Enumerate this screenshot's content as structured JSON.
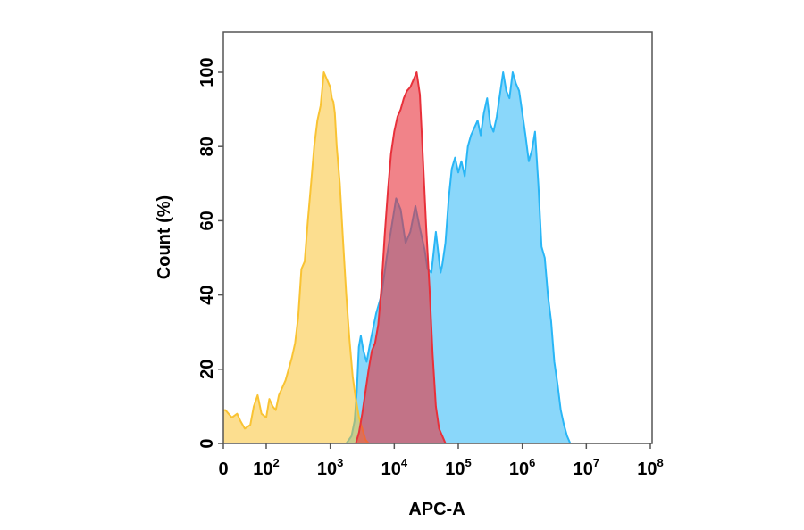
{
  "chart_data": {
    "type": "area",
    "title": "",
    "xlabel": "APC-A",
    "ylabel": "Count (%)",
    "x_scale": "log",
    "xlim": [
      0,
      100000000
    ],
    "ylim": [
      0,
      110
    ],
    "x_ticks": [
      {
        "value": 0,
        "base": "0",
        "exp": ""
      },
      {
        "value": 100,
        "base": "10",
        "exp": "2"
      },
      {
        "value": 1000,
        "base": "10",
        "exp": "3"
      },
      {
        "value": 10000,
        "base": "10",
        "exp": "4"
      },
      {
        "value": 100000,
        "base": "10",
        "exp": "5"
      },
      {
        "value": 1000000,
        "base": "10",
        "exp": "6"
      },
      {
        "value": 10000000,
        "base": "10",
        "exp": "7"
      },
      {
        "value": 100000000,
        "base": "10",
        "exp": "8"
      }
    ],
    "y_ticks": [
      {
        "value": 0,
        "label": "0"
      },
      {
        "value": 20,
        "label": "20"
      },
      {
        "value": 40,
        "label": "40"
      },
      {
        "value": 60,
        "label": "60"
      },
      {
        "value": 80,
        "label": "80"
      },
      {
        "value": 100,
        "label": "100"
      }
    ],
    "grid": false,
    "series": [
      {
        "color": "#29b6f6",
        "fill": "rgba(41,182,246,0.55)",
        "points": [
          [
            1780,
            0
          ],
          [
            2150,
            2
          ],
          [
            2400,
            6
          ],
          [
            2600,
            14
          ],
          [
            2800,
            26
          ],
          [
            3000,
            29
          ],
          [
            3300,
            25
          ],
          [
            3700,
            22
          ],
          [
            4300,
            28
          ],
          [
            5200,
            35
          ],
          [
            6300,
            40
          ],
          [
            7600,
            50
          ],
          [
            9000,
            58
          ],
          [
            10700,
            66
          ],
          [
            12600,
            63
          ],
          [
            15000,
            54
          ],
          [
            17800,
            57
          ],
          [
            21400,
            64
          ],
          [
            25100,
            58
          ],
          [
            30000,
            52
          ],
          [
            33000,
            47
          ],
          [
            38000,
            46
          ],
          [
            44700,
            57
          ],
          [
            53000,
            46
          ],
          [
            56000,
            48
          ],
          [
            63000,
            54
          ],
          [
            71000,
            66
          ],
          [
            79000,
            74
          ],
          [
            89000,
            77
          ],
          [
            100000,
            73
          ],
          [
            112000,
            76
          ],
          [
            126000,
            72
          ],
          [
            141000,
            80
          ],
          [
            158000,
            83
          ],
          [
            178000,
            85
          ],
          [
            200000,
            87
          ],
          [
            224000,
            83
          ],
          [
            251000,
            89
          ],
          [
            282000,
            93
          ],
          [
            316000,
            86
          ],
          [
            355000,
            84
          ],
          [
            398000,
            88
          ],
          [
            447000,
            94
          ],
          [
            501000,
            100
          ],
          [
            562000,
            95
          ],
          [
            631000,
            93
          ],
          [
            708000,
            100
          ],
          [
            794000,
            97
          ],
          [
            891000,
            95
          ],
          [
            1000000,
            89
          ],
          [
            1120000,
            83
          ],
          [
            1260000,
            76
          ],
          [
            1410000,
            79
          ],
          [
            1580000,
            84
          ],
          [
            1780000,
            70
          ],
          [
            2000000,
            53
          ],
          [
            2240000,
            50
          ],
          [
            2510000,
            40
          ],
          [
            2820000,
            33
          ],
          [
            3160000,
            22
          ],
          [
            3550000,
            16
          ],
          [
            3980000,
            9
          ],
          [
            4470000,
            5
          ],
          [
            5010000,
            2
          ],
          [
            5620000,
            0
          ]
        ]
      },
      {
        "color": "#f9c333",
        "fill": "rgba(249,195,51,0.55)",
        "points": [
          [
            0,
            9
          ],
          [
            5,
            9
          ],
          [
            12,
            8
          ],
          [
            20,
            7
          ],
          [
            32,
            8
          ],
          [
            40,
            6
          ],
          [
            50,
            4
          ],
          [
            63,
            5
          ],
          [
            71,
            10
          ],
          [
            80,
            13
          ],
          [
            89,
            8
          ],
          [
            100,
            7
          ],
          [
            112,
            12
          ],
          [
            126,
            10
          ],
          [
            141,
            9
          ],
          [
            158,
            13
          ],
          [
            178,
            15
          ],
          [
            200,
            17
          ],
          [
            224,
            20
          ],
          [
            251,
            23
          ],
          [
            282,
            27
          ],
          [
            316,
            34
          ],
          [
            355,
            47
          ],
          [
            398,
            49
          ],
          [
            447,
            60
          ],
          [
            501,
            70
          ],
          [
            562,
            80
          ],
          [
            631,
            87
          ],
          [
            708,
            91
          ],
          [
            794,
            100
          ],
          [
            891,
            98
          ],
          [
            1000,
            96
          ],
          [
            1060,
            93
          ],
          [
            1120,
            92
          ],
          [
            1180,
            89
          ],
          [
            1260,
            80
          ],
          [
            1410,
            70
          ],
          [
            1580,
            55
          ],
          [
            1780,
            40
          ],
          [
            2000,
            28
          ],
          [
            2240,
            18
          ],
          [
            2510,
            12
          ],
          [
            2820,
            7
          ],
          [
            3160,
            4
          ],
          [
            3550,
            1
          ],
          [
            3980,
            0
          ]
        ]
      },
      {
        "color": "#e8303a",
        "fill": "rgba(232,48,58,0.6)",
        "points": [
          [
            2510,
            0
          ],
          [
            2820,
            3
          ],
          [
            3160,
            8
          ],
          [
            3550,
            14
          ],
          [
            3980,
            20
          ],
          [
            4470,
            25
          ],
          [
            5010,
            27
          ],
          [
            5620,
            32
          ],
          [
            6310,
            42
          ],
          [
            7080,
            56
          ],
          [
            7940,
            68
          ],
          [
            8910,
            78
          ],
          [
            10000,
            84
          ],
          [
            11200,
            88
          ],
          [
            12600,
            90
          ],
          [
            14100,
            93
          ],
          [
            15800,
            95
          ],
          [
            17800,
            96
          ],
          [
            20000,
            98
          ],
          [
            22400,
            100
          ],
          [
            25100,
            94
          ],
          [
            28200,
            76
          ],
          [
            31600,
            58
          ],
          [
            35500,
            42
          ],
          [
            39800,
            24
          ],
          [
            44700,
            10
          ],
          [
            50100,
            4
          ],
          [
            56200,
            2
          ],
          [
            63100,
            0
          ]
        ]
      }
    ]
  }
}
